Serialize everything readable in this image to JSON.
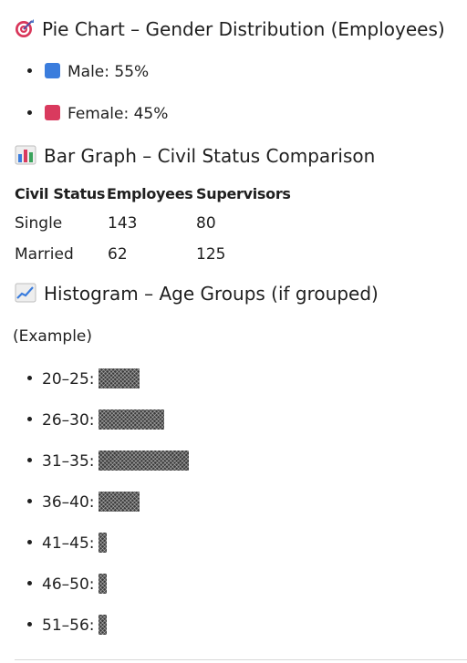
{
  "pie_section": {
    "title": "Pie Chart – Gender Distribution (Employees)",
    "icon": "target-icon",
    "items": [
      {
        "color_name": "blue-square",
        "color": "#3b7ddd",
        "text": "Male: 55%"
      },
      {
        "color_name": "red-square",
        "color": "#d93a5e",
        "text": "Female: 45%"
      }
    ]
  },
  "bar_section": {
    "title": "Bar Graph – Civil Status Comparison",
    "icon": "bar-chart-icon",
    "table": {
      "headers": [
        "Civil Status",
        "Employees",
        "Supervisors"
      ],
      "rows": [
        [
          "Single",
          "143",
          "80"
        ],
        [
          "Married",
          "62",
          "125"
        ]
      ]
    }
  },
  "hist_section": {
    "title": "Histogram – Age Groups (if grouped)",
    "icon": "chart-increasing-icon",
    "note": "(Example)",
    "groups": [
      {
        "label": "20–25:",
        "blocks": 5
      },
      {
        "label": "26–30:",
        "blocks": 8
      },
      {
        "label": "31–35:",
        "blocks": 11
      },
      {
        "label": "36–40:",
        "blocks": 5
      },
      {
        "label": "41–45:",
        "blocks": 1
      },
      {
        "label": "46–50:",
        "blocks": 1
      },
      {
        "label": "51–56:",
        "blocks": 1
      }
    ]
  }
}
